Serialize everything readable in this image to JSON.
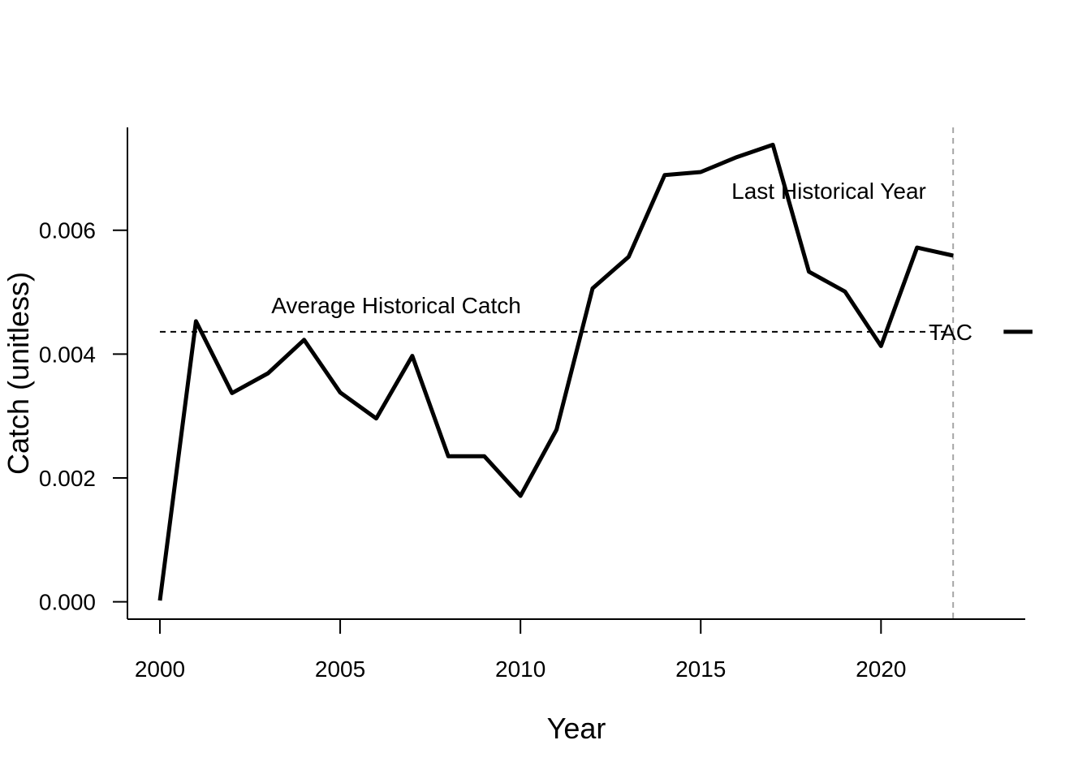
{
  "chart_data": {
    "type": "line",
    "title": "",
    "xlabel": "Year",
    "ylabel": "Catch (unitless)",
    "xlim": [
      1999.1,
      2024
    ],
    "ylim": [
      -0.00028,
      0.00766
    ],
    "x_ticks": [
      2000,
      2005,
      2010,
      2015,
      2020
    ],
    "y_ticks": [
      0.0,
      0.002,
      0.004,
      0.006
    ],
    "y_tick_labels": [
      "0.000",
      "0.002",
      "0.004",
      "0.006"
    ],
    "grid": false,
    "series": [
      {
        "x": [
          2000,
          2001,
          2002,
          2003,
          2004,
          2005,
          2006,
          2007,
          2008,
          2009,
          2010,
          2011,
          2012,
          2013,
          2014,
          2015,
          2016,
          2017,
          2018,
          2019,
          2020,
          2021,
          2022
        ],
        "values": [
          2e-05,
          0.00453,
          0.00337,
          0.00369,
          0.00423,
          0.00338,
          0.00296,
          0.00397,
          0.00235,
          0.00235,
          0.00171,
          0.00278,
          0.00506,
          0.00557,
          0.00689,
          0.00694,
          0.00718,
          0.00738,
          0.00533,
          0.00501,
          0.00413,
          0.00572,
          0.00559
        ],
        "color": "#000000"
      }
    ],
    "reference_lines": {
      "average_historical_catch": {
        "value": 0.00436,
        "label": "Average Historical Catch",
        "style": "dashed",
        "color": "#000000"
      },
      "last_historical_year": {
        "value": 2022,
        "label": "Last Historical Year",
        "style": "dashed",
        "color": "#a6a6a6"
      }
    },
    "tac": {
      "label": "TAC",
      "x_start": 2023.4,
      "x_end": 2024.2,
      "value": 0.00436
    }
  }
}
